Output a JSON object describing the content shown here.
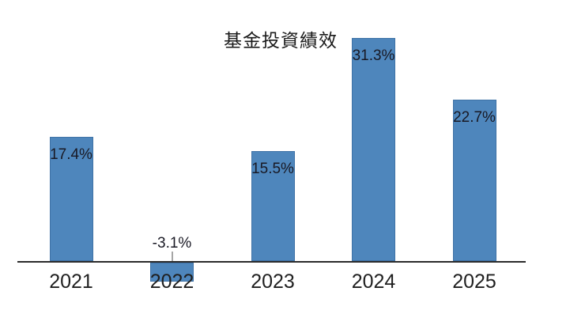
{
  "chart_data": {
    "type": "bar",
    "title": "基金投資績效",
    "categories": [
      "2021",
      "2022",
      "2023",
      "2024",
      "2025"
    ],
    "values": [
      17.4,
      -3.1,
      15.5,
      31.3,
      22.7
    ],
    "data_labels": [
      "17.4%",
      "-3.1%",
      "15.5%",
      "31.3%",
      "22.7%"
    ],
    "xlabel": "",
    "ylabel": "",
    "ylim": [
      -5,
      33
    ],
    "grid": false,
    "legend": false,
    "colors": {
      "bar_fill": "#4e86bc",
      "bar_border": "#3f72a6",
      "axis": "#2b2b2b",
      "data_label": "#191924",
      "year_label": "#1f1f1f",
      "title": "#1a1a1a",
      "leader_line": "#a6a6a6",
      "background": "#ffffff"
    }
  }
}
